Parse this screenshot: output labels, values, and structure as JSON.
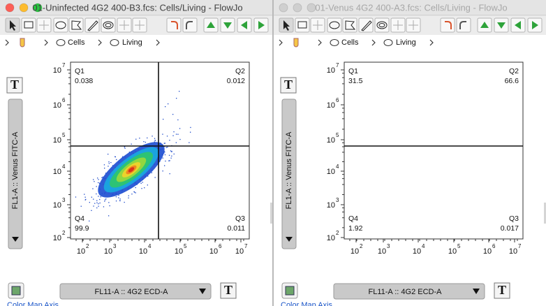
{
  "windows": [
    {
      "title": "01-Uninfected 4G2 400-B3.fcs: Cells/Living - FlowJo",
      "active": true,
      "breadcrumb": [
        "Cells",
        "Living"
      ],
      "format_button": "T",
      "y_axis": "FL1-A :: Venus FITC-A",
      "x_axis": "FL11-A :: 4G2 ECD-A",
      "y_ticks": [
        {
          "base": "10",
          "exp": "7"
        },
        {
          "base": "10",
          "exp": "6"
        },
        {
          "base": "10",
          "exp": "5"
        },
        {
          "base": "10",
          "exp": "4"
        },
        {
          "base": "10",
          "exp": "3"
        },
        {
          "base": "10",
          "exp": "2"
        }
      ],
      "x_ticks": [
        {
          "base": "10",
          "exp": "2"
        },
        {
          "base": "10",
          "exp": "3"
        },
        {
          "base": "10",
          "exp": "4"
        },
        {
          "base": "10",
          "exp": "5"
        },
        {
          "base": "10",
          "exp": "6"
        },
        {
          "base": "10",
          "exp": "7"
        }
      ],
      "quadrants": [
        {
          "name": "Q1",
          "value": 0.038
        },
        {
          "name": "Q2",
          "value": 0.012
        },
        {
          "name": "Q3",
          "value": 0.011
        },
        {
          "name": "Q4",
          "value": 99.9
        }
      ],
      "footer": "Color Map Axis"
    },
    {
      "title": "01-Venus 4G2 400-A3.fcs: Cells/Living - FlowJo",
      "active": false,
      "breadcrumb": [
        "Cells",
        "Living"
      ],
      "format_button": "T",
      "y_axis": "FL1-A :: Venus FITC-A",
      "x_axis": "FL11-A :: 4G2 ECD-A",
      "y_ticks": [
        {
          "base": "10",
          "exp": "7"
        },
        {
          "base": "10",
          "exp": "6"
        },
        {
          "base": "10",
          "exp": "5"
        },
        {
          "base": "10",
          "exp": "4"
        },
        {
          "base": "10",
          "exp": "3"
        },
        {
          "base": "10",
          "exp": "2"
        }
      ],
      "x_ticks": [
        {
          "base": "10",
          "exp": "2"
        },
        {
          "base": "10",
          "exp": "3"
        },
        {
          "base": "10",
          "exp": "4"
        },
        {
          "base": "10",
          "exp": "5"
        },
        {
          "base": "10",
          "exp": "6"
        },
        {
          "base": "10",
          "exp": "7"
        }
      ],
      "quadrants": [
        {
          "name": "Q1",
          "value": 31.5
        },
        {
          "name": "Q2",
          "value": 66.6
        },
        {
          "name": "Q3",
          "value": 0.017
        },
        {
          "name": "Q4",
          "value": 1.92
        }
      ],
      "footer": "Color Map Axis"
    }
  ]
}
